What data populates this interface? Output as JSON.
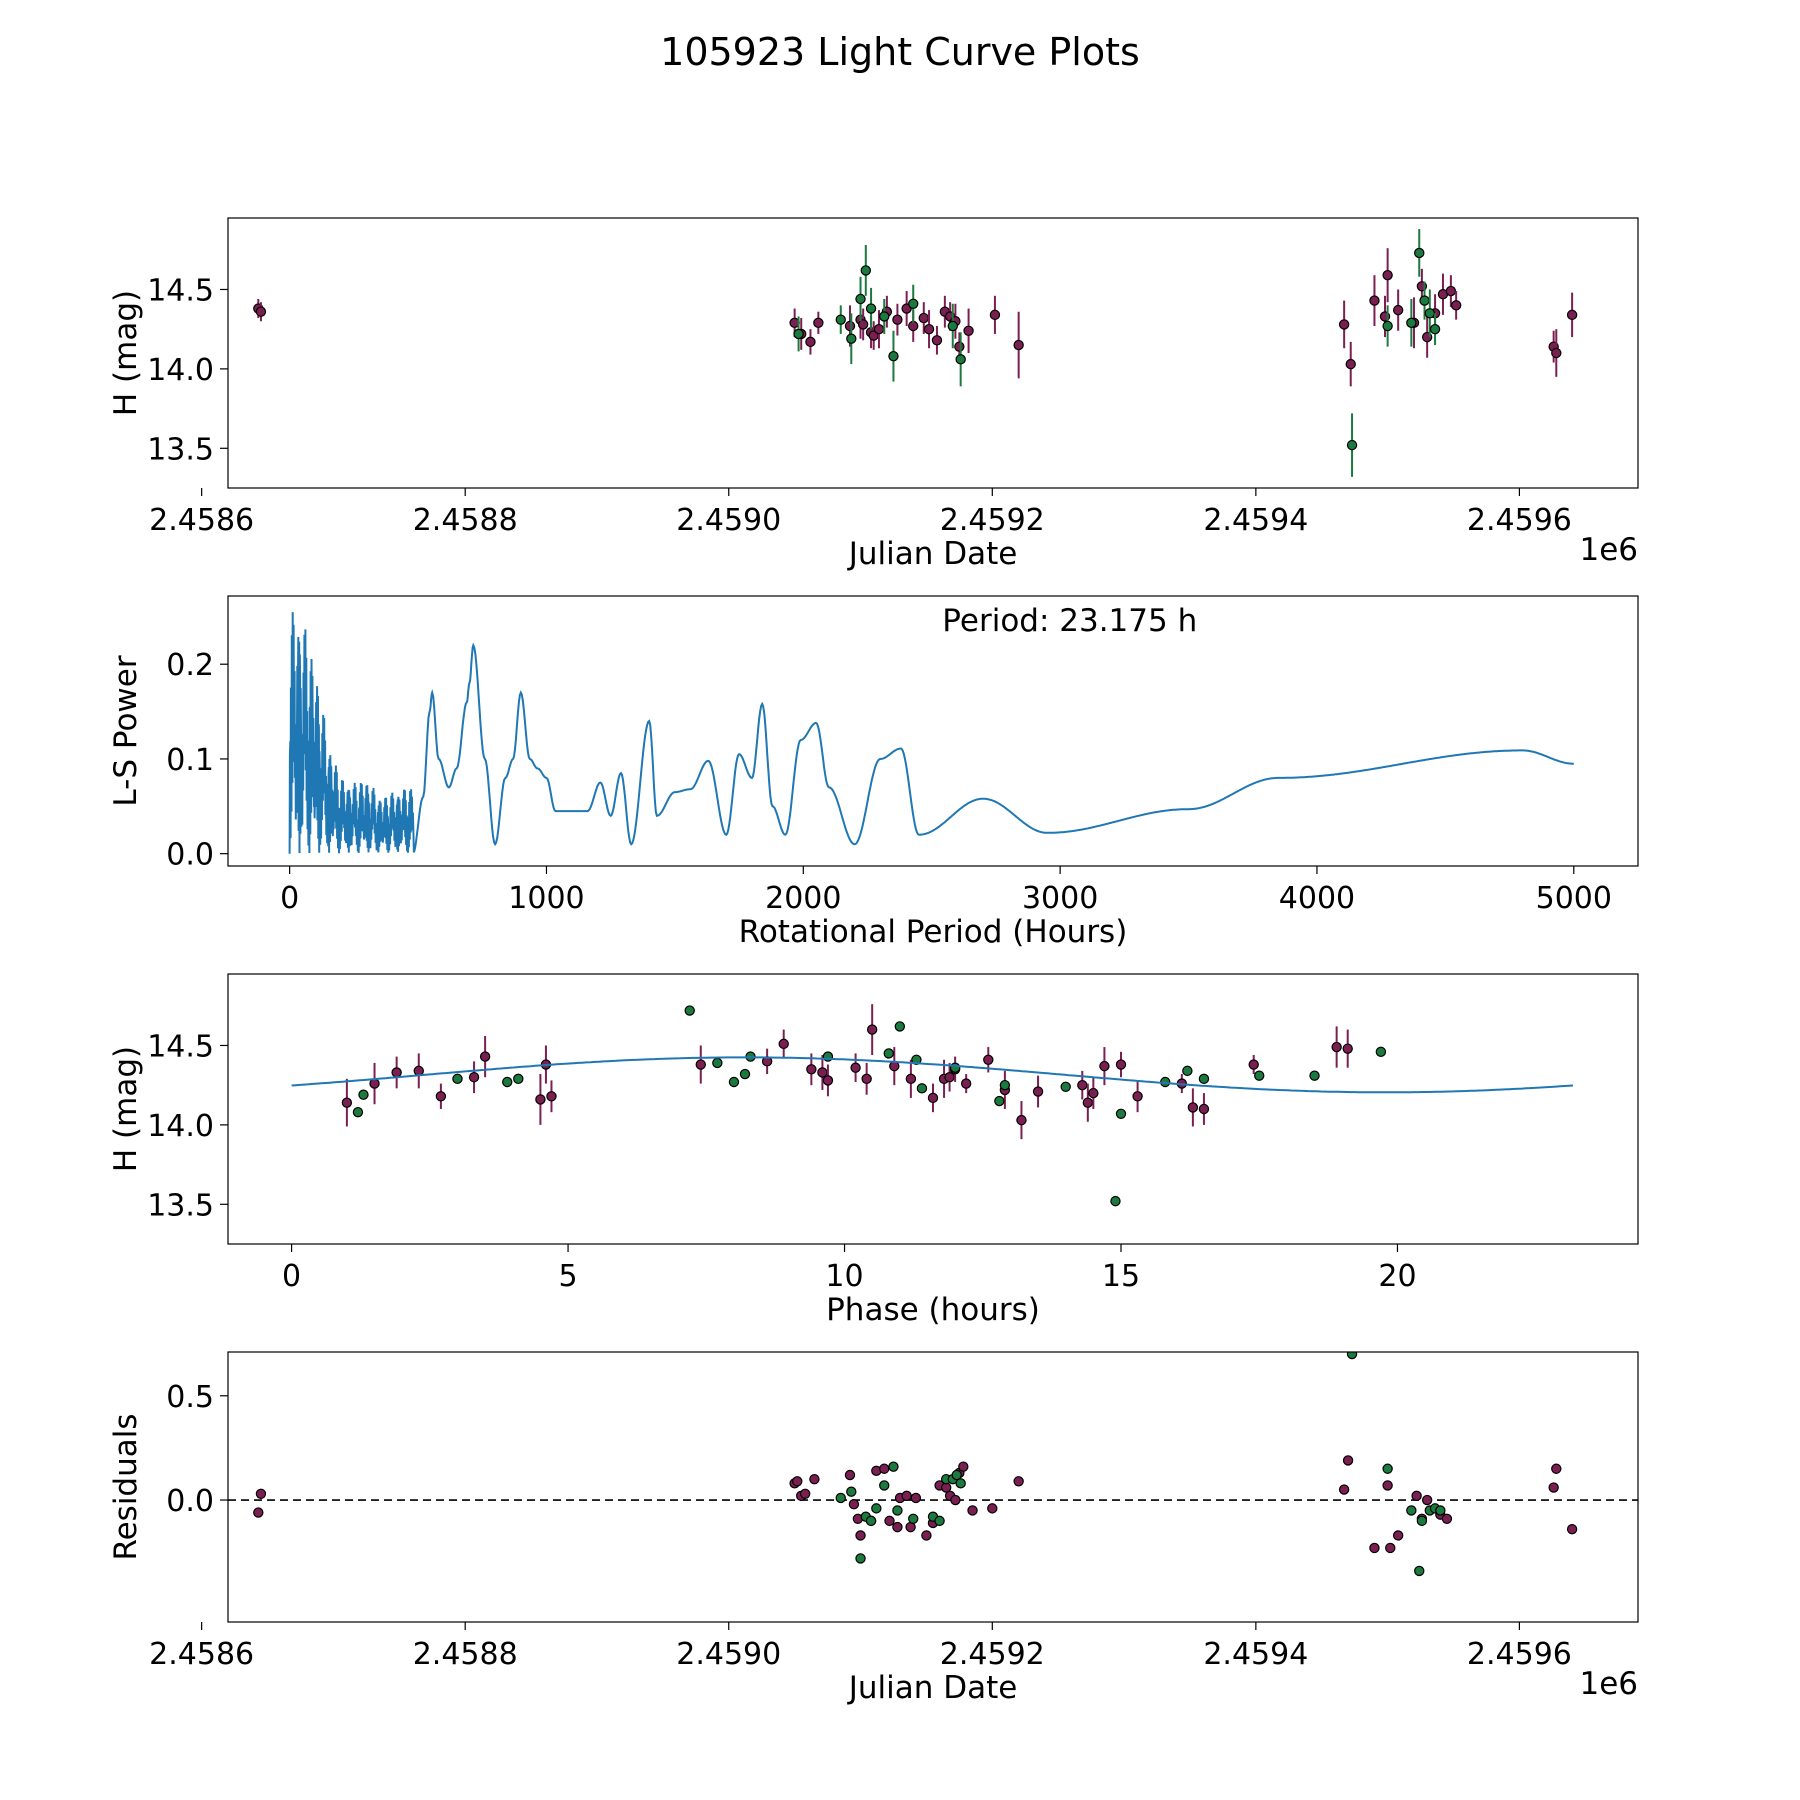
{
  "figure": {
    "title": "105923 Light Curve Plots",
    "colors": {
      "magenta": "#7b1f52",
      "green": "#1b7a3e",
      "line": "#1f77b4",
      "edge": "#000000"
    }
  },
  "chart_data": [
    {
      "type": "scatter",
      "name": "light-curve",
      "xlabel": "Julian Date",
      "ylabel": "H (mag)",
      "offset_label": "1e6",
      "xlim": [
        2.45862,
        2.45969
      ],
      "ylim": [
        13.25,
        14.95
      ],
      "xticks": [
        2.4586,
        2.4588,
        2.459,
        2.4592,
        2.4594,
        2.4596
      ],
      "xtick_labels": [
        "2.4586",
        "2.4588",
        "2.4590",
        "2.4592",
        "2.4594",
        "2.4596"
      ],
      "yticks": [
        13.5,
        14.0,
        14.5
      ],
      "ytick_labels": [
        "13.5",
        "14.0",
        "14.5"
      ],
      "series": [
        {
          "name": "magenta",
          "color": "#7b1f52",
          "x": [
            2.458643,
            2.458645,
            2.45905,
            2.459055,
            2.459062,
            2.459068,
            2.459092,
            2.4591,
            2.459102,
            2.459108,
            2.45911,
            2.459114,
            2.45912,
            2.459128,
            2.459135,
            2.45914,
            2.459148,
            2.459152,
            2.459158,
            2.459164,
            2.459168,
            2.459172,
            2.459175,
            2.459182,
            2.459202,
            2.45922,
            2.459467,
            2.459472,
            2.45949,
            2.459498,
            2.4595,
            2.459508,
            2.45952,
            2.459526,
            2.45953,
            2.459536,
            2.459542,
            2.459548,
            2.459552,
            2.459626,
            2.459628,
            2.45964
          ],
          "y": [
            14.38,
            14.36,
            14.29,
            14.22,
            14.17,
            14.29,
            14.27,
            14.31,
            14.28,
            14.23,
            14.21,
            14.25,
            14.36,
            14.31,
            14.38,
            14.27,
            14.32,
            14.25,
            14.18,
            14.36,
            14.33,
            14.3,
            14.14,
            14.24,
            14.34,
            14.15,
            14.28,
            14.03,
            14.43,
            14.33,
            14.59,
            14.37,
            14.29,
            14.52,
            14.2,
            14.35,
            14.47,
            14.49,
            14.4,
            14.14,
            14.1,
            14.34
          ],
          "err": [
            0.06,
            0.06,
            0.09,
            0.1,
            0.08,
            0.07,
            0.13,
            0.12,
            0.1,
            0.1,
            0.09,
            0.12,
            0.1,
            0.1,
            0.11,
            0.1,
            0.1,
            0.12,
            0.09,
            0.1,
            0.09,
            0.11,
            0.09,
            0.14,
            0.12,
            0.21,
            0.15,
            0.14,
            0.16,
            0.13,
            0.17,
            0.13,
            0.16,
            0.11,
            0.13,
            0.12,
            0.13,
            0.1,
            0.09,
            0.1,
            0.15,
            0.14
          ]
        },
        {
          "name": "green",
          "color": "#1b7a3e",
          "x": [
            2.459053,
            2.459085,
            2.459093,
            2.4591,
            2.459104,
            2.459108,
            2.459118,
            2.459125,
            2.45914,
            2.45917,
            2.459176,
            2.459473,
            2.4595,
            2.459518,
            2.459524,
            2.459528,
            2.459532,
            2.459536
          ],
          "y": [
            14.22,
            14.31,
            14.19,
            14.44,
            14.62,
            14.38,
            14.33,
            14.08,
            14.41,
            14.27,
            14.06,
            13.52,
            14.27,
            14.29,
            14.73,
            14.43,
            14.35,
            14.25
          ],
          "err": [
            0.11,
            0.09,
            0.16,
            0.14,
            0.16,
            0.13,
            0.11,
            0.16,
            0.12,
            0.14,
            0.17,
            0.2,
            0.13,
            0.15,
            0.15,
            0.12,
            0.15,
            0.1
          ]
        }
      ]
    },
    {
      "type": "line",
      "name": "periodogram",
      "xlabel": "Rotational Period (Hours)",
      "ylabel": "L-S Power",
      "annotation": "Period: 23.175 h",
      "xlim": [
        -240,
        5250
      ],
      "ylim": [
        -0.013,
        0.272
      ],
      "xticks": [
        0,
        1000,
        2000,
        3000,
        4000,
        5000
      ],
      "xtick_labels": [
        "0",
        "1000",
        "2000",
        "3000",
        "4000",
        "5000"
      ],
      "yticks": [
        0.0,
        0.1,
        0.2
      ],
      "ytick_labels": [
        "0.0",
        "0.1",
        "0.2"
      ],
      "envelope": {
        "x": [
          0,
          30,
          60,
          100,
          150,
          200,
          250,
          300,
          350,
          400,
          450,
          480
        ],
        "y": [
          0.26,
          0.26,
          0.24,
          0.2,
          0.12,
          0.08,
          0.075,
          0.08,
          0.06,
          0.065,
          0.07,
          0.07
        ]
      },
      "peaks": {
        "x": [
          520,
          545,
          555,
          580,
          620,
          650,
          690,
          700,
          715,
          760,
          800,
          840,
          870,
          900,
          935,
          965,
          1000,
          1035,
          1080,
          1120,
          1160,
          1210,
          1250,
          1290,
          1330,
          1400,
          1430,
          1500,
          1560,
          1630,
          1700,
          1750,
          1800,
          1840,
          1880,
          1930,
          1990,
          2050,
          2100,
          2200,
          2300,
          2380,
          2450,
          2700,
          2950,
          3500,
          3850,
          4800,
          5000
        ],
        "y": [
          0.06,
          0.15,
          0.17,
          0.1,
          0.07,
          0.09,
          0.16,
          0.18,
          0.22,
          0.1,
          0.01,
          0.08,
          0.1,
          0.17,
          0.1,
          0.09,
          0.08,
          0.045,
          0.045,
          0.045,
          0.045,
          0.075,
          0.04,
          0.085,
          0.01,
          0.14,
          0.04,
          0.065,
          0.068,
          0.098,
          0.02,
          0.105,
          0.08,
          0.158,
          0.05,
          0.02,
          0.12,
          0.138,
          0.07,
          0.01,
          0.1,
          0.111,
          0.02,
          0.058,
          0.022,
          0.047,
          0.08,
          0.109,
          0.095
        ]
      }
    },
    {
      "type": "scatter",
      "name": "phase-folded",
      "xlabel": "Phase (hours)",
      "ylabel": "H (mag)",
      "xlim": [
        -1.15,
        24.35
      ],
      "ylim": [
        13.25,
        14.95
      ],
      "xticks": [
        0,
        5,
        10,
        15,
        20
      ],
      "xtick_labels": [
        "0",
        "5",
        "10",
        "15",
        "20"
      ],
      "yticks": [
        13.5,
        14.0,
        14.5
      ],
      "ytick_labels": [
        "13.5",
        "14.0",
        "14.5"
      ],
      "model": {
        "mean": 14.315,
        "amplitude": 0.11,
        "period": 23.175,
        "peak_phase": 8.2,
        "x_max": 23.175
      },
      "series": [
        {
          "name": "magenta",
          "color": "#7b1f52",
          "x": [
            1.0,
            1.5,
            1.9,
            2.3,
            2.7,
            3.3,
            3.5,
            4.5,
            4.6,
            4.7,
            7.4,
            8.6,
            8.9,
            9.4,
            9.6,
            9.7,
            10.2,
            10.4,
            10.5,
            10.9,
            11.2,
            11.6,
            11.8,
            11.9,
            12.0,
            12.2,
            12.6,
            12.9,
            13.2,
            13.5,
            14.3,
            14.4,
            14.5,
            14.7,
            15.0,
            15.3,
            16.1,
            16.3,
            16.5,
            17.4,
            18.9,
            19.1
          ],
          "y": [
            14.14,
            14.26,
            14.33,
            14.34,
            14.18,
            14.3,
            14.43,
            14.16,
            14.38,
            14.18,
            14.38,
            14.4,
            14.51,
            14.35,
            14.33,
            14.28,
            14.36,
            14.29,
            14.6,
            14.37,
            14.29,
            14.17,
            14.29,
            14.3,
            14.35,
            14.26,
            14.41,
            14.22,
            14.03,
            14.21,
            14.25,
            14.14,
            14.2,
            14.37,
            14.38,
            14.18,
            14.26,
            14.11,
            14.1,
            14.38,
            14.49,
            14.48
          ],
          "err": [
            0.15,
            0.13,
            0.1,
            0.11,
            0.08,
            0.1,
            0.13,
            0.16,
            0.12,
            0.1,
            0.12,
            0.08,
            0.09,
            0.1,
            0.11,
            0.1,
            0.09,
            0.1,
            0.16,
            0.12,
            0.12,
            0.09,
            0.12,
            0.09,
            0.08,
            0.06,
            0.08,
            0.12,
            0.12,
            0.1,
            0.09,
            0.12,
            0.1,
            0.12,
            0.08,
            0.1,
            0.06,
            0.12,
            0.1,
            0.06,
            0.13,
            0.12
          ]
        },
        {
          "name": "green",
          "color": "#1b7a3e",
          "x": [
            1.2,
            1.3,
            3.0,
            3.9,
            4.1,
            7.2,
            7.7,
            8.0,
            8.2,
            8.3,
            9.7,
            10.8,
            11.0,
            11.3,
            11.4,
            12.0,
            12.8,
            12.9,
            14.0,
            14.9,
            15.0,
            15.8,
            16.2,
            16.5,
            17.5,
            18.5,
            19.7
          ],
          "y": [
            14.08,
            14.19,
            14.29,
            14.27,
            14.29,
            14.72,
            14.39,
            14.27,
            14.32,
            14.43,
            14.43,
            14.45,
            14.62,
            14.41,
            14.23,
            14.36,
            14.15,
            14.25,
            14.24,
            13.52,
            14.07,
            14.27,
            14.34,
            14.29,
            14.31,
            14.31,
            14.46
          ]
        }
      ]
    },
    {
      "type": "scatter",
      "name": "residuals",
      "xlabel": "Julian Date",
      "ylabel": "Residuals",
      "offset_label": "1e6",
      "xlim": [
        2.45862,
        2.45969
      ],
      "ylim": [
        -0.585,
        0.71
      ],
      "xticks": [
        2.4586,
        2.4588,
        2.459,
        2.4592,
        2.4594,
        2.4596
      ],
      "xtick_labels": [
        "2.4586",
        "2.4588",
        "2.4590",
        "2.4592",
        "2.4594",
        "2.4596"
      ],
      "yticks": [
        0.0,
        0.5
      ],
      "ytick_labels": [
        "0.0",
        "0.5"
      ],
      "zero_line": 0.0,
      "series": [
        {
          "name": "magenta",
          "color": "#7b1f52",
          "x": [
            2.458643,
            2.458645,
            2.45905,
            2.459052,
            2.459055,
            2.459058,
            2.459065,
            2.459092,
            2.459095,
            2.459098,
            2.4591,
            2.459108,
            2.459112,
            2.459118,
            2.459122,
            2.459128,
            2.45913,
            2.459135,
            2.459138,
            2.459142,
            2.45915,
            2.459155,
            2.45916,
            2.459165,
            2.459168,
            2.459172,
            2.459175,
            2.459178,
            2.459185,
            2.4592,
            2.45922,
            2.459467,
            2.45947,
            2.45949,
            2.4595,
            2.459502,
            2.459508,
            2.459522,
            2.459526,
            2.45953,
            2.45954,
            2.459545,
            2.459626,
            2.459628,
            2.45964
          ],
          "y": [
            -0.06,
            0.03,
            0.08,
            0.09,
            0.02,
            0.03,
            0.1,
            0.12,
            -0.02,
            -0.09,
            -0.17,
            -0.1,
            0.14,
            0.15,
            -0.1,
            -0.13,
            0.01,
            0.02,
            -0.13,
            0.01,
            -0.17,
            -0.11,
            0.07,
            0.06,
            0.02,
            0.0,
            0.13,
            0.16,
            -0.05,
            -0.04,
            0.09,
            0.05,
            0.19,
            -0.23,
            0.07,
            -0.23,
            -0.17,
            0.02,
            -0.09,
            0.0,
            -0.07,
            -0.09,
            0.06,
            0.15,
            -0.14
          ]
        },
        {
          "name": "green",
          "color": "#1b7a3e",
          "x": [
            2.459085,
            2.459093,
            2.4591,
            2.459104,
            2.459108,
            2.459112,
            2.459118,
            2.459125,
            2.459128,
            2.45914,
            2.459155,
            2.45916,
            2.459165,
            2.45917,
            2.459173,
            2.459176,
            2.459473,
            2.4595,
            2.459518,
            2.459524,
            2.459526,
            2.459532,
            2.459536,
            2.45954
          ],
          "y": [
            0.01,
            0.04,
            -0.28,
            -0.08,
            -0.1,
            -0.04,
            0.07,
            0.16,
            -0.05,
            -0.09,
            -0.08,
            -0.1,
            0.1,
            0.1,
            0.12,
            0.08,
            0.7,
            0.15,
            -0.05,
            -0.34,
            -0.1,
            -0.05,
            -0.04,
            -0.05
          ]
        }
      ]
    }
  ]
}
